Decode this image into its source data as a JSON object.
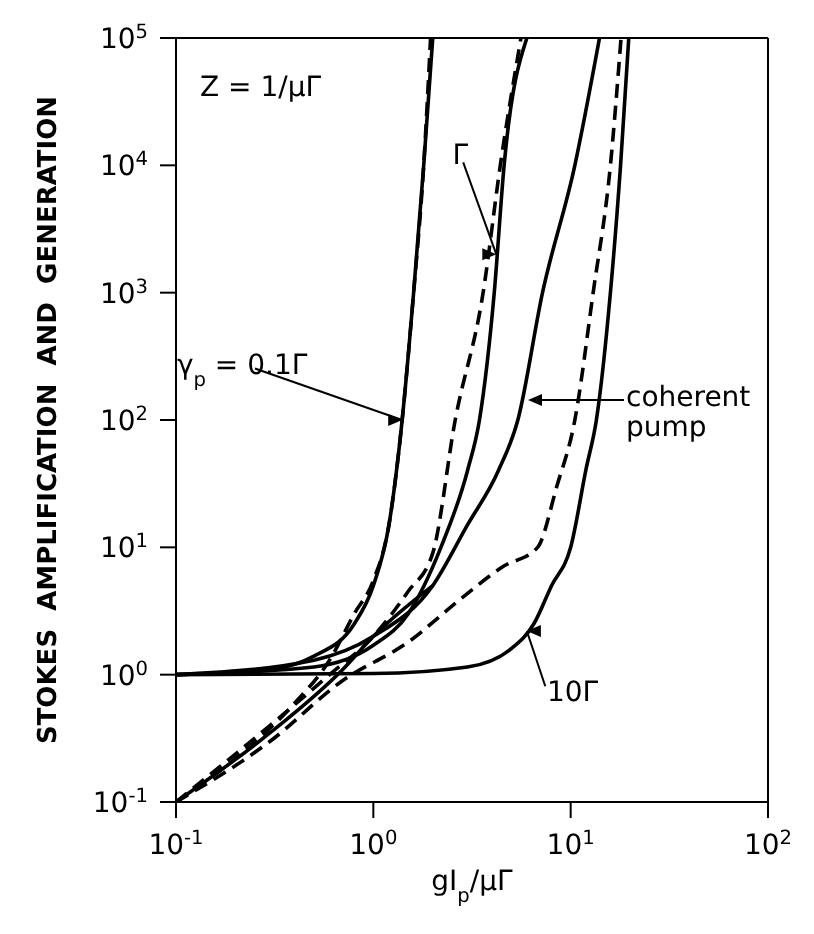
{
  "chart_data": {
    "type": "line",
    "xlabel": "gI$_{p}$/μΓ",
    "ylabel": "STOKES  AMPLIFICATION  AND  GENERATION",
    "log": "xy",
    "xlim": [
      0.1,
      100
    ],
    "ylim": [
      0.1,
      100000
    ],
    "xticks": [
      {
        "value": 0.1,
        "label": "10$^{-1}$"
      },
      {
        "value": 1,
        "label": "10$^{0}$"
      },
      {
        "value": 10,
        "label": "10$^{1}$"
      },
      {
        "value": 100,
        "label": "10$^{2}$"
      }
    ],
    "yticks": [
      {
        "value": 0.1,
        "label": "10$^{-1}$"
      },
      {
        "value": 1,
        "label": "10$^{0}$"
      },
      {
        "value": 10,
        "label": "10$^{1}$"
      },
      {
        "value": 100,
        "label": "10$^{2}$"
      },
      {
        "value": 1000,
        "label": "10$^{3}$"
      },
      {
        "value": 10000,
        "label": "10$^{4}$"
      },
      {
        "value": 100000,
        "label": "10$^{5}$"
      }
    ],
    "grid": false,
    "legend": false,
    "marker": "none",
    "series": [
      {
        "color": "#000000",
        "line_style": "solid",
        "x": [
          0.1,
          0.3,
          0.5,
          0.8,
          1.0,
          1.2,
          1.4,
          1.6,
          1.8,
          2.0
        ],
        "values": [
          1,
          1.1,
          1.4,
          2.5,
          5,
          15,
          100,
          1000,
          10000,
          100000
        ]
      },
      {
        "color": "#000000",
        "line_style": "dashed",
        "x": [
          0.1,
          0.2,
          0.4,
          0.6,
          0.8,
          1.0,
          1.2,
          1.4,
          1.6,
          1.8,
          1.95
        ],
        "values": [
          0.1,
          0.22,
          0.6,
          1.3,
          3,
          5.5,
          15,
          100,
          1000,
          10000,
          100000
        ]
      },
      {
        "color": "#000000",
        "line_style": "solid",
        "x": [
          0.1,
          0.5,
          1,
          1.5,
          2.2,
          3.0,
          3.45,
          4.1,
          4.6,
          6.0
        ],
        "values": [
          1,
          1.15,
          1.7,
          3,
          10,
          40,
          100,
          1000,
          10000,
          100000
        ]
      },
      {
        "color": "#000000",
        "line_style": "dashed",
        "x": [
          0.1,
          0.3,
          0.6,
          1,
          1.5,
          2,
          2.6,
          3.6,
          4.4,
          5.6
        ],
        "values": [
          0.1,
          0.4,
          1,
          2,
          4.5,
          9,
          100,
          1000,
          10000,
          100000
        ]
      },
      {
        "color": "#000000",
        "line_style": "solid",
        "x": [
          0.1,
          0.5,
          1,
          2,
          3,
          4.3,
          5.4,
          7.2,
          10.5,
          14
        ],
        "values": [
          1,
          1.3,
          2,
          5,
          15,
          40,
          100,
          1000,
          10000,
          100000
        ]
      },
      {
        "color": "#000000",
        "line_style": "solid",
        "x": [
          0.1,
          0.3,
          0.7,
          1,
          2
        ],
        "values": [
          0.1,
          0.35,
          1.1,
          2,
          5
        ]
      },
      {
        "color": "#000000",
        "line_style": "solid",
        "x": [
          0.1,
          1,
          3,
          5,
          6.5,
          8,
          10,
          12,
          13.5,
          15.9,
          17.9,
          19.7
        ],
        "values": [
          1,
          1.02,
          1.15,
          1.6,
          2.5,
          5,
          10,
          42,
          100,
          1000,
          10000,
          100000
        ]
      },
      {
        "color": "#000000",
        "line_style": "dashed",
        "x": [
          0.1,
          0.3,
          0.7,
          1.5,
          2.75,
          4.5,
          6.8,
          8.5,
          10.5,
          13,
          15.9,
          18
        ],
        "values": [
          0.1,
          0.3,
          0.9,
          1.8,
          3.9,
          7,
          10,
          30,
          100,
          1000,
          10000,
          100000
        ]
      }
    ],
    "annotations": [
      "Z = 1/μΓ",
      {
        "text": "γ$_{p}$ = 0.1Γ",
        "x": 1.4,
        "y": 100
      },
      {
        "text": "Γ",
        "x": 4.2,
        "y": 2000
      },
      "coherent pump",
      {
        "text": "10Γ",
        "x": 6,
        "y": 2.2
      }
    ]
  }
}
